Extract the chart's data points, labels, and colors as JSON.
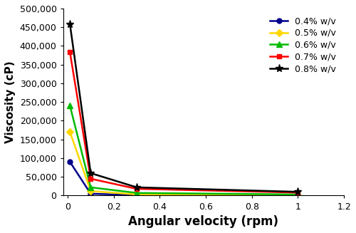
{
  "series": [
    {
      "label": "0.4% w/v",
      "color": "#00008B",
      "marker": "o",
      "markersize": 5,
      "markerfacecolor": "#00008B",
      "x": [
        0.01,
        0.1,
        0.3,
        1.0
      ],
      "y": [
        90000,
        5000,
        1000,
        500
      ]
    },
    {
      "label": "0.5% w/v",
      "color": "#FFD700",
      "marker": "D",
      "markersize": 5,
      "markerfacecolor": "#FFD700",
      "x": [
        0.01,
        0.1,
        0.3,
        1.0
      ],
      "y": [
        170000,
        12000,
        3000,
        1000
      ]
    },
    {
      "label": "0.6% w/v",
      "color": "#00BB00",
      "marker": "^",
      "markersize": 6,
      "markerfacecolor": "#00BB00",
      "x": [
        0.01,
        0.1,
        0.3,
        1.0
      ],
      "y": [
        240000,
        22000,
        7000,
        3000
      ]
    },
    {
      "label": "0.7% w/v",
      "color": "#FF0000",
      "marker": "s",
      "markersize": 5,
      "markerfacecolor": "#FF0000",
      "x": [
        0.01,
        0.1,
        0.3,
        1.0
      ],
      "y": [
        383000,
        45000,
        18000,
        8000
      ]
    },
    {
      "label": "0.8% w/v",
      "color": "#000000",
      "marker": "*",
      "markersize": 8,
      "markerfacecolor": "#000000",
      "x": [
        0.01,
        0.1,
        0.3,
        1.0
      ],
      "y": [
        458000,
        60000,
        22000,
        10000
      ]
    }
  ],
  "xlabel": "Angular velocity (rpm)",
  "ylabel": "Viscosity (cP)",
  "xlim": [
    -0.02,
    1.2
  ],
  "ylim": [
    0,
    500000
  ],
  "xticks": [
    0,
    0.2,
    0.4,
    0.6,
    0.8,
    1.0,
    1.2
  ],
  "xtick_labels": [
    "0",
    "0.2",
    "0.4",
    "0.6",
    "0.8",
    "1",
    "1.2"
  ],
  "yticks": [
    0,
    50000,
    100000,
    150000,
    200000,
    250000,
    300000,
    350000,
    400000,
    450000,
    500000
  ],
  "ytick_labels": [
    "0",
    "50,000",
    "100,000",
    "150,000",
    "200,000",
    "250,000",
    "300,000",
    "350,000",
    "400,000",
    "450,000",
    "500,000"
  ],
  "linewidth": 1.8,
  "xlabel_fontsize": 12,
  "ylabel_fontsize": 11,
  "tick_fontsize": 9,
  "legend_fontsize": 9
}
